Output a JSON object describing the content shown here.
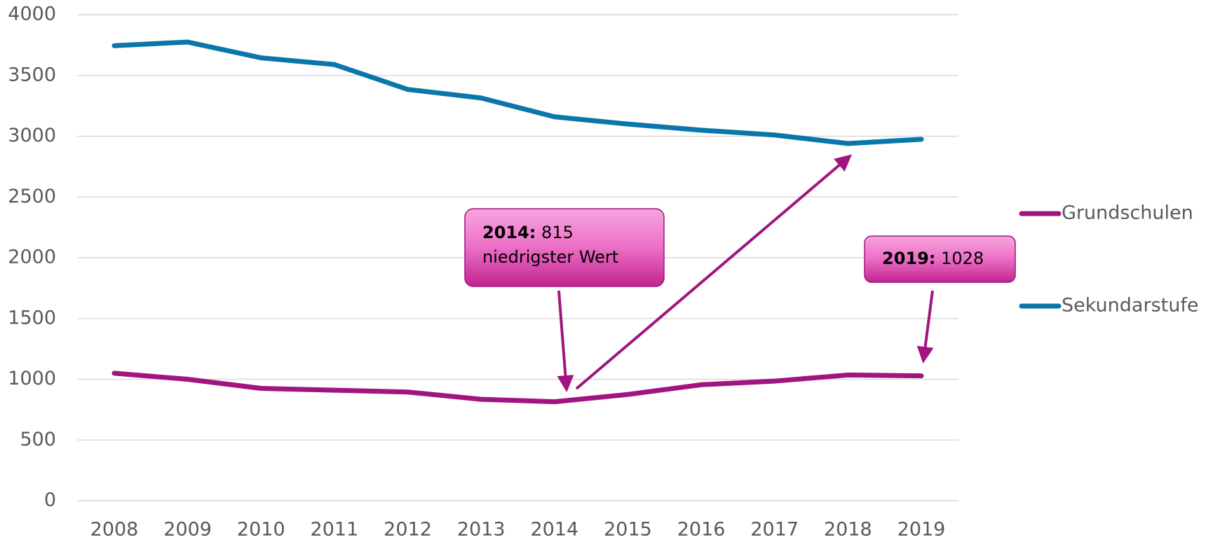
{
  "chart_data": {
    "type": "line",
    "categories": [
      "2008",
      "2009",
      "2010",
      "2011",
      "2012",
      "2013",
      "2014",
      "2015",
      "2016",
      "2017",
      "2018",
      "2019"
    ],
    "series": [
      {
        "name": "Grundschulen",
        "color": "#a0157f",
        "values": [
          1050,
          1000,
          925,
          910,
          895,
          835,
          815,
          875,
          955,
          985,
          1035,
          1028
        ]
      },
      {
        "name": "Sekundarstufe",
        "color": "#0a77aa",
        "values": [
          3745,
          3775,
          3645,
          3590,
          3385,
          3315,
          3160,
          3100,
          3050,
          3010,
          2940,
          2975
        ]
      }
    ],
    "ylim": [
      0,
      4000
    ],
    "yticks": [
      0,
      500,
      1000,
      1500,
      2000,
      2500,
      3000,
      3500,
      4000
    ],
    "grid": true,
    "legend": "right",
    "annotations": [
      {
        "label": "2014:",
        "text": "815",
        "note": "niedrigster Wert"
      },
      {
        "label": "2019:",
        "text": "1028"
      }
    ]
  }
}
